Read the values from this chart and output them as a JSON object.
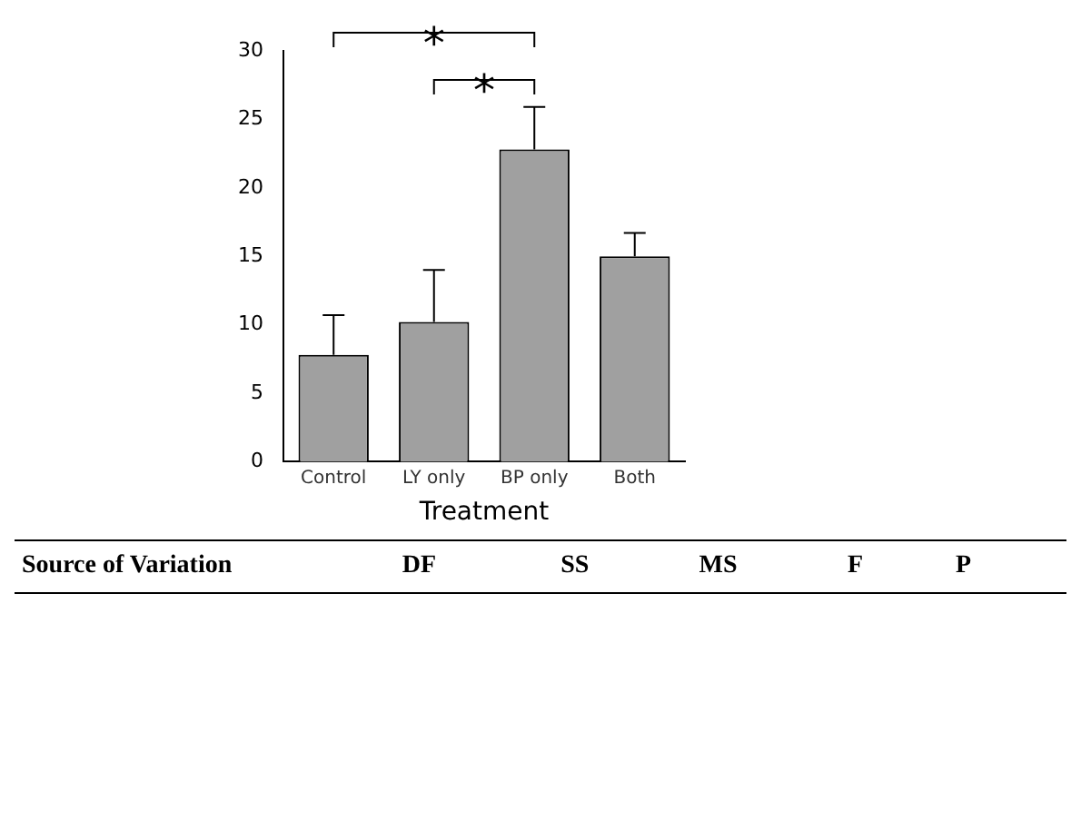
{
  "chart_data": {
    "type": "bar",
    "categories": [
      "Control",
      "LY only",
      "BP only",
      "Both"
    ],
    "values": [
      7.8,
      10.2,
      22.8,
      15.0
    ],
    "errors": [
      2.9,
      3.8,
      3.1,
      1.7
    ],
    "color": "#a0a0a0",
    "xlabel": "Treatment",
    "ylim": [
      0,
      30
    ],
    "yticks": [
      0,
      5,
      10,
      15,
      20,
      25,
      30
    ],
    "grid": false,
    "legend": false,
    "annotations": [
      "*",
      "*",
      "Source of Variation",
      "DF",
      "SS",
      "MS",
      "F",
      "P"
    ]
  }
}
